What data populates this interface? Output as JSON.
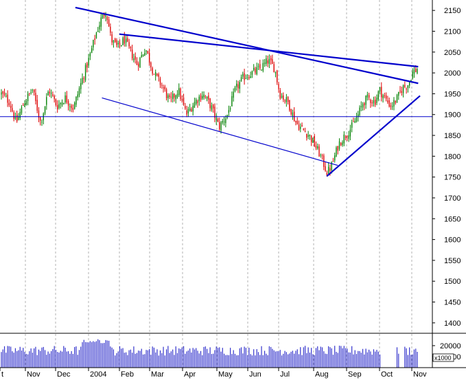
{
  "chart_data": {
    "type": "candlestick",
    "price_axis": {
      "ticks": [
        2150,
        2100,
        2050,
        2000,
        1950,
        1900,
        1850,
        1800,
        1750,
        1700,
        1650,
        1600,
        1550,
        1500,
        1450,
        1400
      ],
      "range": [
        1375,
        2175
      ]
    },
    "volume_axis": {
      "ticks": [
        20000,
        10000
      ],
      "unit_label": "x1000",
      "range": [
        0,
        30000
      ]
    },
    "month_labels": [
      "t",
      "Nov",
      "Dec",
      "2004",
      "Feb",
      "Mar",
      "Apr",
      "May",
      "Jun",
      "Jul",
      "Aug",
      "Sep",
      "Oct",
      "Nov"
    ],
    "horizontal_line": 1895,
    "candle_count": 268,
    "price_keypoints": [
      [
        0,
        1950
      ],
      [
        10,
        1930
      ],
      [
        18,
        1880
      ],
      [
        28,
        1930
      ],
      [
        38,
        1960
      ],
      [
        48,
        1880
      ],
      [
        58,
        1960
      ],
      [
        68,
        1920
      ],
      [
        78,
        1940
      ],
      [
        88,
        1915
      ],
      [
        98,
        1980
      ],
      [
        108,
        2040
      ],
      [
        115,
        2090
      ],
      [
        122,
        2130
      ],
      [
        128,
        2150
      ],
      [
        134,
        2080
      ],
      [
        142,
        2060
      ],
      [
        150,
        2080
      ],
      [
        158,
        2050
      ],
      [
        166,
        2020
      ],
      [
        176,
        2060
      ],
      [
        186,
        2000
      ],
      [
        196,
        1970
      ],
      [
        206,
        1930
      ],
      [
        216,
        1960
      ],
      [
        226,
        1900
      ],
      [
        236,
        1930
      ],
      [
        246,
        1950
      ],
      [
        256,
        1920
      ],
      [
        266,
        1870
      ],
      [
        276,
        1900
      ],
      [
        286,
        1960
      ],
      [
        296,
        1990
      ],
      [
        306,
        2000
      ],
      [
        316,
        2010
      ],
      [
        326,
        2030
      ],
      [
        334,
        2010
      ],
      [
        340,
        1950
      ],
      [
        350,
        1930
      ],
      [
        360,
        1880
      ],
      [
        370,
        1860
      ],
      [
        376,
        1850
      ],
      [
        382,
        1830
      ],
      [
        390,
        1800
      ],
      [
        398,
        1760
      ],
      [
        404,
        1780
      ],
      [
        412,
        1830
      ],
      [
        420,
        1850
      ],
      [
        428,
        1870
      ],
      [
        436,
        1900
      ],
      [
        442,
        1930
      ],
      [
        448,
        1940
      ],
      [
        456,
        1930
      ],
      [
        462,
        1960
      ],
      [
        468,
        1940
      ],
      [
        476,
        1920
      ],
      [
        484,
        1940
      ],
      [
        490,
        1965
      ],
      [
        496,
        1970
      ],
      [
        502,
        2000
      ],
      [
        508,
        2010
      ]
    ],
    "volume_profile": {
      "base": 15500,
      "variation": 4500,
      "peak_region": [
        118,
        160
      ],
      "peak_value": 24000,
      "gap_region": [
        555,
        590
      ]
    },
    "trendlines": [
      {
        "color": "#0000cc",
        "width": "thick",
        "points": [
          [
            "Dec-19",
            2157
          ],
          [
            "Nov-08",
            1975
          ]
        ]
      },
      {
        "color": "#0000cc",
        "width": "thick",
        "points": [
          [
            "Jan-31",
            2093
          ],
          [
            "Nov-08",
            2015
          ]
        ]
      },
      {
        "color": "#0000cc",
        "width": "thick",
        "points": [
          [
            "Aug-13",
            1752
          ],
          [
            "Nov-10",
            1945
          ]
        ]
      },
      {
        "color": "#0000cc",
        "width": "thin",
        "points": [
          [
            "Jan-14",
            1940
          ],
          [
            "Aug-23",
            1778
          ]
        ]
      }
    ],
    "grid": {
      "vertical_dashed": true
    }
  }
}
